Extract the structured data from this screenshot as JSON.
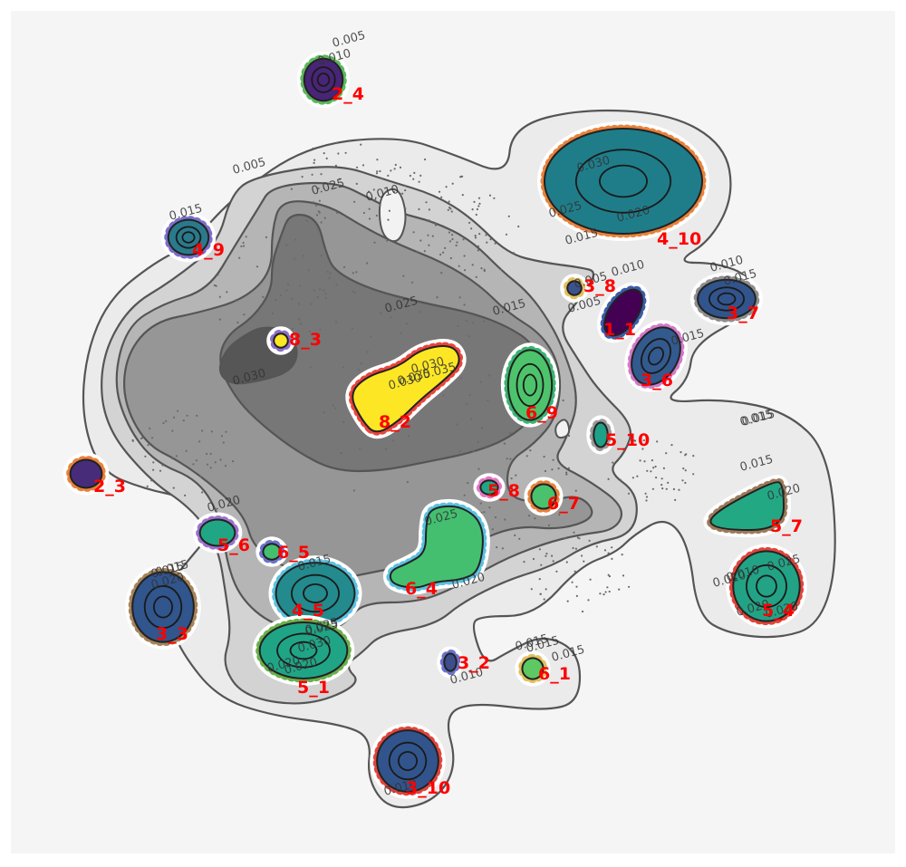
{
  "chart_data": {
    "type": "contour_scatter",
    "title": "",
    "xlabel": "",
    "ylabel": "",
    "grid": false,
    "background_levels": [
      "0.005",
      "0.010",
      "0.015",
      "0.020",
      "0.025",
      "0.030"
    ],
    "background_fills": [
      "#ebebeb",
      "#d3d3d3",
      "#b5b5b5",
      "#969696",
      "#777777",
      "#565656",
      "#3a3a3a"
    ],
    "clusters": [
      {
        "label": "2_4",
        "color": "#482576",
        "ring": "#5cb85c"
      },
      {
        "label": "4_10",
        "color": "#1f7d8a",
        "ring": "#e8823a"
      },
      {
        "label": "4_9",
        "color": "#2a7a8c",
        "ring": "#7b6fc8"
      },
      {
        "label": "3_8",
        "color": "#3b528b",
        "ring": "#e0c060"
      },
      {
        "label": "3_7",
        "color": "#31548c",
        "ring": "#8e8e8e"
      },
      {
        "label": "1_1",
        "color": "#440154",
        "ring": "#3d5ba8"
      },
      {
        "label": "3_6",
        "color": "#325a8e",
        "ring": "#d279c9"
      },
      {
        "label": "8_3",
        "color": "#fde725",
        "ring": "#8a6fc8"
      },
      {
        "label": "8_2",
        "color": "#fde725",
        "ring": "#e8453c"
      },
      {
        "label": "6_9",
        "color": "#4dc36b",
        "ring": "#3cb371"
      },
      {
        "label": "5_10",
        "color": "#1fa187",
        "ring": "#9a9a9a"
      },
      {
        "label": "2_3",
        "color": "#472c7a",
        "ring": "#e8823a"
      },
      {
        "label": "5_8",
        "color": "#21a685",
        "ring": "#e377c2"
      },
      {
        "label": "6_7",
        "color": "#4ac16d",
        "ring": "#e8823a"
      },
      {
        "label": "5_7",
        "color": "#23a884",
        "ring": "#9c7a5a"
      },
      {
        "label": "5_6",
        "color": "#21a685",
        "ring": "#9c72cc"
      },
      {
        "label": "6_5",
        "color": "#44bf70",
        "ring": "#6a72cc"
      },
      {
        "label": "6_4",
        "color": "#44bf70",
        "ring": "#5bc0de"
      },
      {
        "label": "4_5",
        "color": "#238a8d",
        "ring": "#5bc0de"
      },
      {
        "label": "5_4",
        "color": "#22a385",
        "ring": "#e0453c"
      },
      {
        "label": "3_3",
        "color": "#31558d",
        "ring": "#a6845a"
      },
      {
        "label": "5_1",
        "color": "#20a486",
        "ring": "#6ab04c"
      },
      {
        "label": "3_2",
        "color": "#3d4e8a",
        "ring": "#6a72cc"
      },
      {
        "label": "6_1",
        "color": "#5ec962",
        "ring": "#e0c060"
      },
      {
        "label": "3_10",
        "color": "#31548c",
        "ring": "#e0453c"
      }
    ],
    "contour_labels": [
      "0.005",
      "0.010",
      "0.005",
      "0.010",
      "0.025",
      "0.015",
      "0.030",
      "0.035",
      "0.030",
      "0.025",
      "0.020",
      "0.015",
      "0.005",
      "0.010",
      "0.015",
      "0.010",
      "0.015",
      "0.005",
      "0.015",
      "0.025",
      "0.030",
      "0.035",
      "0.030",
      "0.025",
      "0.015",
      "0.015",
      "0.020",
      "0.025",
      "0.020",
      "0.015",
      "0.020",
      "0.015",
      "0.020",
      "0.015",
      "0.025",
      "0.030",
      "0.020",
      "0.015",
      "0.010",
      "0.020",
      "0.015",
      "0.010",
      "0.015",
      "0.010",
      "0.015",
      "0.020",
      "0.025",
      "0.010",
      "0.020"
    ]
  }
}
